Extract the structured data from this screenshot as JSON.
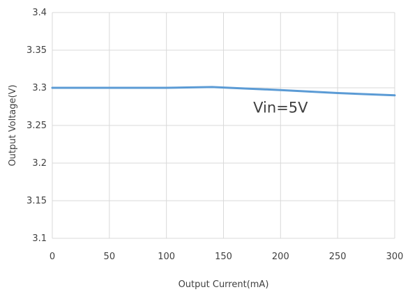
{
  "chart_data": {
    "type": "line",
    "title": "",
    "xlabel": "Output Current(mA)",
    "ylabel": "Output Voltage(V)",
    "xlim": [
      0,
      300
    ],
    "ylim": [
      3.1,
      3.4
    ],
    "xticks": [
      "0",
      "50",
      "100",
      "150",
      "200",
      "250",
      "300"
    ],
    "yticks": [
      "3.1",
      "3.15",
      "3.2",
      "3.25",
      "3.3",
      "3.35",
      "3.4"
    ],
    "grid": true,
    "series": [
      {
        "color": "#5b9bd5",
        "x": [
          0,
          50,
          100,
          140,
          200,
          250,
          300
        ],
        "y": [
          3.3,
          3.3,
          3.3,
          3.301,
          3.297,
          3.293,
          3.29
        ]
      }
    ],
    "annotations": [
      {
        "text": "Vin=5V",
        "x": 200,
        "y": 3.267
      }
    ]
  }
}
